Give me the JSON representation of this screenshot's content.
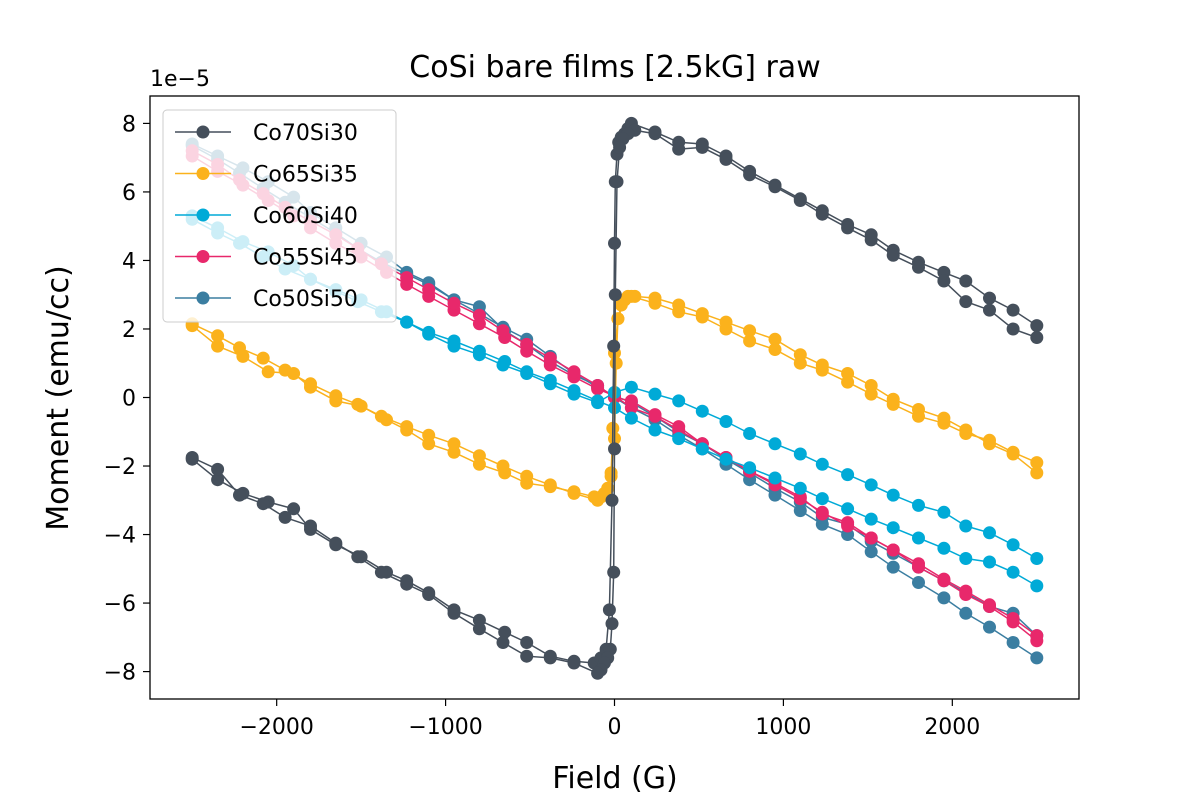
{
  "chart_data": {
    "type": "line",
    "title": "CoSi bare films [2.5kG] raw",
    "xlabel": "Field (G)",
    "ylabel": "Moment (emu/cc)",
    "y_multiplier_label": "1e−5",
    "xlim": [
      -2750,
      2750
    ],
    "ylim": [
      -8.8,
      8.8
    ],
    "x_ticks": [
      -2000,
      -1000,
      0,
      1000,
      2000
    ],
    "x_tick_labels": [
      "−2000",
      "−1000",
      "0",
      "1000",
      "2000"
    ],
    "y_ticks": [
      -8,
      -6,
      -4,
      -2,
      0,
      2,
      4,
      6,
      8
    ],
    "y_tick_labels": [
      "−8",
      "−6",
      "−4",
      "−2",
      "0",
      "2",
      "4",
      "6",
      "8"
    ],
    "grid": false,
    "legend_position": "upper-left",
    "series": [
      {
        "name": "Co50Si50",
        "color": "#3b7ea1",
        "branches": [
          {
            "x": [
              -2500,
              -2350,
              -2200,
              -2050,
              -1900,
              -1800,
              -1650,
              -1500,
              -1350,
              -1230,
              -1100,
              -950,
              -800,
              -650,
              -520,
              -380,
              -240,
              -100,
              0,
              100,
              240,
              380,
              520,
              660,
              800,
              950,
              1100,
              1230,
              1380,
              1520,
              1650,
              1800,
              1950,
              2080,
              2220,
              2360,
              2500
            ],
            "y": [
              7.4,
              7.05,
              6.7,
              6.3,
              5.85,
              5.4,
              4.95,
              4.5,
              4.1,
              3.65,
              3.35,
              2.85,
              2.65,
              1.95,
              1.55,
              1.05,
              0.65,
              0.35,
              0.0,
              -0.3,
              -0.65,
              -1.1,
              -1.5,
              -1.95,
              -2.4,
              -2.85,
              -3.3,
              -3.7,
              -4.0,
              -4.5,
              -4.95,
              -5.4,
              -5.85,
              -6.3,
              -6.7,
              -7.15,
              -7.6
            ]
          },
          {
            "x": [
              2500,
              2360,
              2220,
              2080,
              1950,
              1800,
              1650,
              1520,
              1380,
              1230,
              1100,
              950,
              800,
              660,
              520,
              380,
              240,
              100,
              0,
              -100,
              -240,
              -380,
              -520,
              -660,
              -800,
              -950,
              -1100,
              -1230,
              -1380,
              -1520,
              -1650,
              -1800,
              -1950,
              -2080,
              -2220,
              -2350,
              -2500
            ],
            "y": [
              -6.95,
              -6.3,
              -6.1,
              -5.7,
              -5.35,
              -4.95,
              -4.55,
              -4.2,
              -3.7,
              -3.5,
              -3.05,
              -2.65,
              -2.2,
              -1.8,
              -1.35,
              -1.0,
              -0.55,
              -0.15,
              0.05,
              0.3,
              0.7,
              1.2,
              1.7,
              2.05,
              2.45,
              2.85,
              3.3,
              3.6,
              3.95,
              4.35,
              4.8,
              5.25,
              5.7,
              6.1,
              6.55,
              6.95,
              7.35
            ]
          }
        ]
      },
      {
        "name": "Co55Si45",
        "color": "#e8286b",
        "branches": [
          {
            "x": [
              -2500,
              -2350,
              -2200,
              -2050,
              -1900,
              -1800,
              -1650,
              -1500,
              -1350,
              -1230,
              -1100,
              -950,
              -800,
              -650,
              -520,
              -380,
              -240,
              -100,
              0,
              100,
              240,
              380,
              520,
              660,
              800,
              950,
              1100,
              1230,
              1380,
              1520,
              1650,
              1800,
              1950,
              2080,
              2220,
              2360,
              2500
            ],
            "y": [
              7.05,
              6.6,
              6.2,
              5.75,
              5.3,
              4.95,
              4.5,
              4.1,
              3.65,
              3.3,
              2.95,
              2.55,
              2.15,
              1.75,
              1.35,
              0.95,
              0.6,
              0.25,
              0.05,
              -0.3,
              -0.55,
              -0.95,
              -1.35,
              -1.75,
              -2.15,
              -2.55,
              -2.95,
              -3.35,
              -3.75,
              -4.1,
              -4.45,
              -4.85,
              -5.3,
              -5.65,
              -6.05,
              -6.45,
              -6.95
            ]
          },
          {
            "x": [
              2500,
              2360,
              2220,
              2080,
              1950,
              1800,
              1650,
              1520,
              1380,
              1230,
              1100,
              950,
              800,
              660,
              520,
              380,
              240,
              100,
              0,
              -100,
              -240,
              -380,
              -520,
              -660,
              -800,
              -950,
              -1100,
              -1230,
              -1380,
              -1520,
              -1650,
              -1800,
              -1950,
              -2080,
              -2220,
              -2350,
              -2500
            ],
            "y": [
              -7.1,
              -6.55,
              -6.1,
              -5.75,
              -5.35,
              -4.95,
              -4.45,
              -4.1,
              -3.65,
              -3.4,
              -2.9,
              -2.5,
              -2.15,
              -1.75,
              -1.35,
              -0.85,
              -0.5,
              -0.1,
              0.0,
              0.35,
              0.75,
              1.15,
              1.55,
              1.95,
              2.4,
              2.75,
              3.15,
              3.5,
              3.9,
              4.35,
              4.75,
              5.15,
              5.55,
              5.95,
              6.35,
              6.8,
              7.2
            ]
          }
        ]
      },
      {
        "name": "Co60Si40",
        "color": "#00aad7",
        "branches": [
          {
            "x": [
              -2500,
              -2350,
              -2200,
              -2050,
              -1900,
              -1800,
              -1650,
              -1500,
              -1350,
              -1230,
              -1100,
              -950,
              -800,
              -650,
              -520,
              -380,
              -240,
              -100,
              0,
              100,
              240,
              380,
              520,
              660,
              800,
              950,
              1100,
              1230,
              1380,
              1520,
              1650,
              1800,
              1950,
              2080,
              2220,
              2360,
              2500
            ],
            "y": [
              5.3,
              4.95,
              4.55,
              4.25,
              3.85,
              3.45,
              3.15,
              2.85,
              2.5,
              2.2,
              1.9,
              1.65,
              1.35,
              1.05,
              0.75,
              0.5,
              0.2,
              -0.1,
              -0.3,
              -0.6,
              -0.95,
              -1.2,
              -1.5,
              -1.8,
              -2.05,
              -2.35,
              -2.65,
              -2.95,
              -3.25,
              -3.55,
              -3.8,
              -4.1,
              -4.4,
              -4.7,
              -4.8,
              -5.1,
              -5.5
            ]
          },
          {
            "x": [
              2500,
              2360,
              2220,
              2080,
              1950,
              1800,
              1650,
              1520,
              1380,
              1230,
              1100,
              950,
              800,
              660,
              520,
              380,
              240,
              100,
              0,
              -100,
              -240,
              -380,
              -520,
              -660,
              -800,
              -950,
              -1100,
              -1230,
              -1380,
              -1520,
              -1650,
              -1800,
              -1950,
              -2080,
              -2220,
              -2350,
              -2500
            ],
            "y": [
              -4.7,
              -4.3,
              -3.95,
              -3.75,
              -3.35,
              -3.15,
              -2.85,
              -2.55,
              -2.25,
              -1.95,
              -1.65,
              -1.35,
              -1.05,
              -0.7,
              -0.4,
              -0.1,
              0.1,
              0.3,
              0.15,
              -0.15,
              0.1,
              0.4,
              0.7,
              0.95,
              1.25,
              1.5,
              1.85,
              2.2,
              2.5,
              2.8,
              3.1,
              3.45,
              3.75,
              4.1,
              4.5,
              4.8,
              5.2
            ]
          }
        ]
      },
      {
        "name": "Co65Si35",
        "color": "#fbb21c",
        "branches": [
          {
            "x": [
              -2500,
              -2350,
              -2200,
              -2050,
              -1900,
              -1800,
              -1650,
              -1500,
              -1350,
              -1230,
              -1100,
              -950,
              -800,
              -650,
              -520,
              -380,
              -240,
              -120,
              -60,
              -20,
              0,
              10,
              20,
              40,
              60,
              80,
              100,
              240,
              380,
              520,
              660,
              800,
              950,
              1100,
              1230,
              1380,
              1520,
              1650,
              1800,
              1950,
              2080,
              2220,
              2360,
              2500
            ],
            "y": [
              2.1,
              1.5,
              1.2,
              0.75,
              0.7,
              0.3,
              -0.1,
              -0.25,
              -0.65,
              -0.95,
              -1.35,
              -1.6,
              -1.95,
              -2.2,
              -2.5,
              -2.6,
              -2.75,
              -2.9,
              -2.8,
              -2.3,
              -1.2,
              1.0,
              2.3,
              2.7,
              2.85,
              2.95,
              2.95,
              2.75,
              2.5,
              2.35,
              2.0,
              1.65,
              1.4,
              1.0,
              0.8,
              0.45,
              0.1,
              -0.2,
              -0.55,
              -0.75,
              -1.05,
              -1.25,
              -1.6,
              -1.9
            ]
          },
          {
            "x": [
              2500,
              2360,
              2220,
              2080,
              1950,
              1800,
              1650,
              1520,
              1380,
              1230,
              1100,
              950,
              800,
              660,
              520,
              380,
              240,
              120,
              60,
              20,
              0,
              -10,
              -20,
              -40,
              -60,
              -80,
              -100,
              -240,
              -380,
              -520,
              -660,
              -800,
              -950,
              -1100,
              -1230,
              -1380,
              -1520,
              -1650,
              -1800,
              -1950,
              -2080,
              -2220,
              -2350,
              -2500
            ],
            "y": [
              -2.2,
              -1.65,
              -1.35,
              -0.95,
              -0.6,
              -0.35,
              -0.05,
              0.35,
              0.7,
              0.95,
              1.25,
              1.7,
              1.95,
              2.2,
              2.45,
              2.7,
              2.9,
              2.95,
              2.85,
              2.3,
              1.3,
              -0.9,
              -2.2,
              -2.65,
              -2.85,
              -2.9,
              -3.0,
              -2.8,
              -2.55,
              -2.3,
              -2.0,
              -1.7,
              -1.35,
              -1.1,
              -0.85,
              -0.55,
              -0.2,
              0.05,
              0.4,
              0.8,
              1.15,
              1.45,
              1.8,
              2.15
            ]
          }
        ]
      },
      {
        "name": "Co70Si30",
        "color": "#454f5b",
        "branches": [
          {
            "x": [
              -2500,
              -2350,
              -2200,
              -2050,
              -1900,
              -1800,
              -1650,
              -1500,
              -1350,
              -1230,
              -1100,
              -950,
              -800,
              -650,
              -520,
              -380,
              -240,
              -120,
              -80,
              -50,
              -30,
              -15,
              -5,
              0,
              5,
              15,
              25,
              40,
              60,
              80,
              100,
              240,
              380,
              520,
              660,
              800,
              950,
              1100,
              1230,
              1380,
              1520,
              1650,
              1800,
              1950,
              2080,
              2220,
              2360,
              2500
            ],
            "y": [
              -1.8,
              -2.4,
              -2.8,
              -3.05,
              -3.25,
              -3.85,
              -4.3,
              -4.65,
              -5.1,
              -5.35,
              -5.7,
              -6.2,
              -6.5,
              -6.85,
              -7.15,
              -7.55,
              -7.7,
              -7.75,
              -7.6,
              -7.35,
              -6.2,
              -3.0,
              1.5,
              4.5,
              6.3,
              7.1,
              7.45,
              7.6,
              7.7,
              7.85,
              8.0,
              7.75,
              7.45,
              7.4,
              7.05,
              6.6,
              6.2,
              5.8,
              5.45,
              5.05,
              4.75,
              4.3,
              3.95,
              3.65,
              3.4,
              2.9,
              2.55,
              2.1
            ]
          },
          {
            "x": [
              2500,
              2360,
              2220,
              2080,
              1950,
              1800,
              1650,
              1520,
              1380,
              1230,
              1100,
              950,
              800,
              660,
              520,
              380,
              240,
              120,
              80,
              50,
              30,
              15,
              5,
              0,
              -5,
              -15,
              -25,
              -40,
              -60,
              -80,
              -100,
              -240,
              -380,
              -520,
              -660,
              -800,
              -950,
              -1100,
              -1230,
              -1380,
              -1520,
              -1650,
              -1800,
              -1950,
              -2080,
              -2220,
              -2350,
              -2500
            ],
            "y": [
              1.75,
              2.0,
              2.55,
              2.8,
              3.4,
              3.8,
              4.15,
              4.6,
              4.95,
              5.35,
              5.75,
              6.15,
              6.5,
              6.95,
              7.3,
              7.25,
              7.7,
              7.8,
              7.7,
              7.55,
              7.3,
              6.3,
              3.0,
              -1.5,
              -5.1,
              -6.6,
              -7.35,
              -7.6,
              -7.75,
              -7.95,
              -8.05,
              -7.75,
              -7.6,
              -7.55,
              -7.15,
              -6.75,
              -6.3,
              -5.75,
              -5.45,
              -5.1,
              -4.65,
              -4.25,
              -3.75,
              -3.5,
              -3.1,
              -2.85,
              -2.1,
              -1.75
            ]
          }
        ]
      }
    ],
    "legend": [
      "Co70Si30",
      "Co65Si35",
      "Co60Si40",
      "Co55Si45",
      "Co50Si50"
    ]
  }
}
